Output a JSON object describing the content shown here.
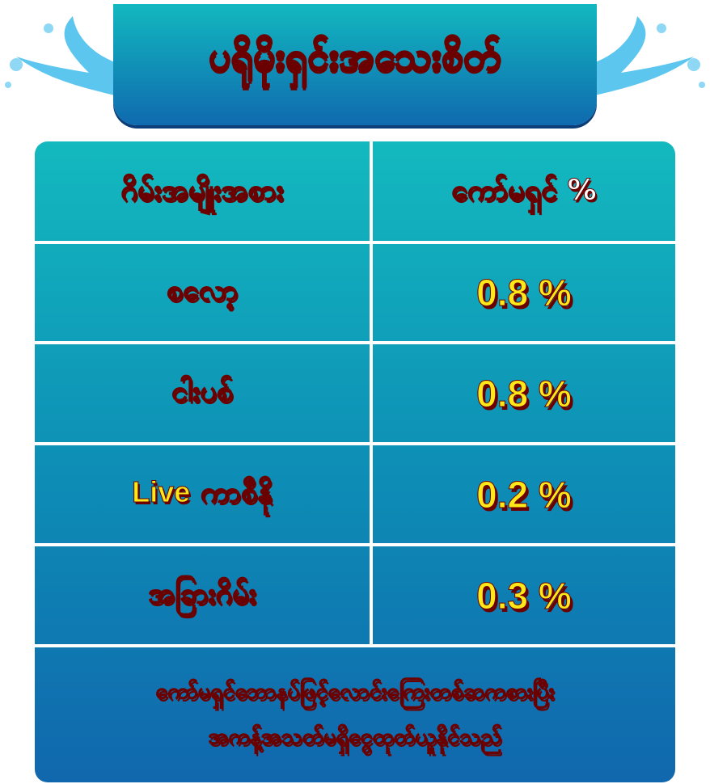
{
  "title": "ပရိုမိုးရှင်းအသေးစိတ်",
  "headers": {
    "game_type": "ဂိမ်းအမျိုးအစား",
    "commission": "ကော်မရှင် %"
  },
  "rows": [
    {
      "game": "စလော့",
      "rate": "0.8 %"
    },
    {
      "game": "ငါးပစ်",
      "rate": "0.8 %"
    },
    {
      "game_prefix": "Live",
      "game": "ကာစီနို",
      "rate": "0.2 %"
    },
    {
      "game": "အခြားဂိမ်း",
      "rate": "0.3 %"
    }
  ],
  "footer": {
    "line1": "ကော်မရှင်ဘောနပ်ဖြင့်လောင်းကြေးတစ်ဆကစားပြီး",
    "line2": "အကန့်အသတ်မရှိငွေထုတ်ယူနိုင်သည်"
  },
  "colors": {
    "table_top": "#13b9bf",
    "table_bottom": "#1167ad",
    "value_text": "#ffe81a",
    "outline": "#6b0000"
  }
}
